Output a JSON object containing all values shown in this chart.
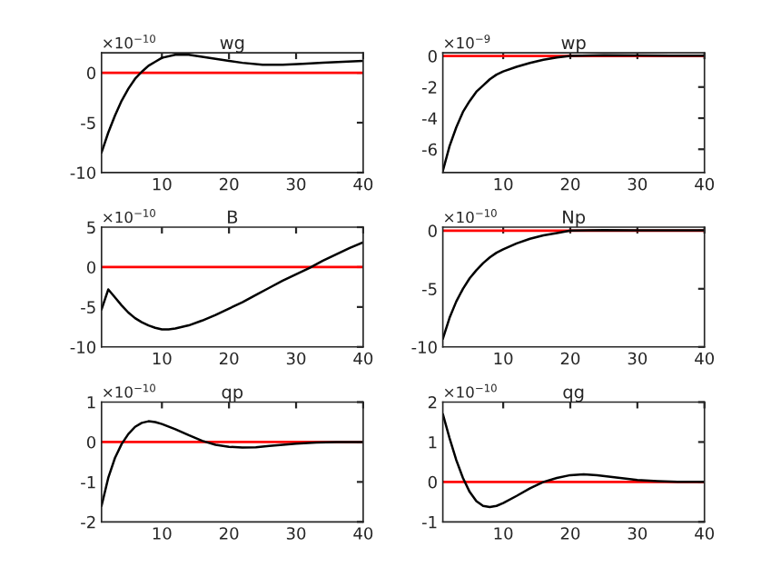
{
  "chart_data": [
    {
      "type": "line",
      "title": "wg",
      "annotations": [
        "×10$^{−10}$"
      ],
      "xlim": [
        1,
        40
      ],
      "xticks": [
        10,
        20,
        30,
        40
      ],
      "ylim": [
        -10,
        2
      ],
      "yticks": [
        -10,
        -5,
        0
      ],
      "grid": false,
      "legend": false,
      "ref_lines": [
        {
          "axis": "y",
          "value": 0,
          "color": "#ff0000"
        }
      ],
      "series": [
        {
          "color": "#000000",
          "x": [
            1,
            2,
            3,
            4,
            5,
            6,
            7,
            8,
            9,
            10,
            12,
            14,
            16,
            18,
            20,
            22,
            25,
            28,
            31,
            34,
            37,
            40
          ],
          "values": [
            -8,
            -6,
            -4.3,
            -2.8,
            -1.6,
            -0.6,
            0.1,
            0.7,
            1.1,
            1.5,
            1.8,
            1.8,
            1.6,
            1.4,
            1.2,
            1.0,
            0.8,
            0.8,
            0.9,
            1.0,
            1.1,
            1.2
          ]
        }
      ]
    },
    {
      "type": "line",
      "title": "wp",
      "annotations": [
        "×10$^{−9}$"
      ],
      "xlim": [
        1,
        40
      ],
      "xticks": [
        10,
        20,
        30,
        40
      ],
      "ylim": [
        -7.5,
        0.2
      ],
      "yticks": [
        -6,
        -4,
        -2,
        0
      ],
      "grid": false,
      "legend": false,
      "ref_lines": [
        {
          "axis": "y",
          "value": 0,
          "color": "#ff0000"
        }
      ],
      "series": [
        {
          "color": "#000000",
          "x": [
            1,
            2,
            3,
            4,
            5,
            6,
            7,
            8,
            9,
            10,
            12,
            14,
            16,
            18,
            20,
            25,
            30,
            35,
            40
          ],
          "values": [
            -7.4,
            -5.8,
            -4.6,
            -3.6,
            -2.9,
            -2.3,
            -1.9,
            -1.5,
            -1.2,
            -1.0,
            -0.7,
            -0.45,
            -0.25,
            -0.1,
            0,
            0.05,
            0.03,
            0.02,
            0.02
          ]
        }
      ]
    },
    {
      "type": "line",
      "title": "B",
      "annotations": [
        "×10$^{−10}$"
      ],
      "xlim": [
        1,
        40
      ],
      "xticks": [
        10,
        20,
        30,
        40
      ],
      "ylim": [
        -10,
        5
      ],
      "yticks": [
        -10,
        -5,
        0,
        5
      ],
      "grid": false,
      "legend": false,
      "ref_lines": [
        {
          "axis": "y",
          "value": 0,
          "color": "#ff0000"
        }
      ],
      "series": [
        {
          "color": "#000000",
          "x": [
            1,
            2,
            3,
            4,
            5,
            6,
            7,
            8,
            9,
            10,
            11,
            12,
            14,
            16,
            18,
            20,
            22,
            24,
            26,
            28,
            30,
            32,
            34,
            36,
            38,
            40
          ],
          "values": [
            -5.3,
            -2.8,
            -3.8,
            -4.8,
            -5.7,
            -6.4,
            -6.9,
            -7.3,
            -7.6,
            -7.8,
            -7.8,
            -7.7,
            -7.3,
            -6.7,
            -6.0,
            -5.2,
            -4.4,
            -3.5,
            -2.6,
            -1.7,
            -0.9,
            -0.1,
            0.8,
            1.6,
            2.4,
            3.1
          ]
        }
      ]
    },
    {
      "type": "line",
      "title": "Np",
      "annotations": [
        "×10$^{−10}$"
      ],
      "xlim": [
        1,
        40
      ],
      "xticks": [
        10,
        20,
        30,
        40
      ],
      "ylim": [
        -10,
        0.3
      ],
      "yticks": [
        -10,
        -5,
        0
      ],
      "grid": false,
      "legend": false,
      "ref_lines": [
        {
          "axis": "y",
          "value": 0,
          "color": "#ff0000"
        }
      ],
      "series": [
        {
          "color": "#000000",
          "x": [
            1,
            2,
            3,
            4,
            5,
            6,
            7,
            8,
            9,
            10,
            12,
            14,
            16,
            18,
            20,
            25,
            30,
            40
          ],
          "values": [
            -9.3,
            -7.5,
            -6.1,
            -5.0,
            -4.1,
            -3.4,
            -2.8,
            -2.3,
            -1.9,
            -1.6,
            -1.1,
            -0.7,
            -0.4,
            -0.2,
            0,
            0.05,
            0.03,
            0.02
          ]
        }
      ]
    },
    {
      "type": "line",
      "title": "qp",
      "annotations": [
        "×10$^{−10}$"
      ],
      "xlim": [
        1,
        40
      ],
      "xticks": [
        10,
        20,
        30,
        40
      ],
      "ylim": [
        -2,
        1
      ],
      "yticks": [
        -2,
        -1,
        0,
        1
      ],
      "grid": false,
      "legend": false,
      "ref_lines": [
        {
          "axis": "y",
          "value": 0,
          "color": "#ff0000"
        }
      ],
      "series": [
        {
          "color": "#000000",
          "x": [
            1,
            2,
            3,
            4,
            5,
            6,
            7,
            8,
            9,
            10,
            12,
            14,
            16,
            18,
            20,
            22,
            24,
            26,
            28,
            30,
            33,
            36,
            40
          ],
          "values": [
            -1.6,
            -0.9,
            -0.4,
            -0.05,
            0.2,
            0.38,
            0.48,
            0.52,
            0.5,
            0.45,
            0.32,
            0.17,
            0.03,
            -0.07,
            -0.12,
            -0.14,
            -0.13,
            -0.1,
            -0.07,
            -0.04,
            -0.01,
            0,
            0
          ]
        }
      ]
    },
    {
      "type": "line",
      "title": "qg",
      "annotations": [
        "×10$^{−10}$"
      ],
      "xlim": [
        1,
        40
      ],
      "xticks": [
        10,
        20,
        30,
        40
      ],
      "ylim": [
        -1,
        2
      ],
      "yticks": [
        -1,
        0,
        1,
        2
      ],
      "grid": false,
      "legend": false,
      "ref_lines": [
        {
          "axis": "y",
          "value": 0,
          "color": "#ff0000"
        }
      ],
      "series": [
        {
          "color": "#000000",
          "x": [
            1,
            2,
            3,
            4,
            5,
            6,
            7,
            8,
            9,
            10,
            12,
            14,
            16,
            18,
            20,
            22,
            24,
            26,
            28,
            30,
            33,
            36,
            40
          ],
          "values": [
            1.7,
            1.1,
            0.55,
            0.1,
            -0.25,
            -0.48,
            -0.6,
            -0.63,
            -0.6,
            -0.53,
            -0.35,
            -0.16,
            0.0,
            0.1,
            0.17,
            0.19,
            0.17,
            0.13,
            0.09,
            0.05,
            0.02,
            0,
            0
          ]
        }
      ]
    }
  ]
}
